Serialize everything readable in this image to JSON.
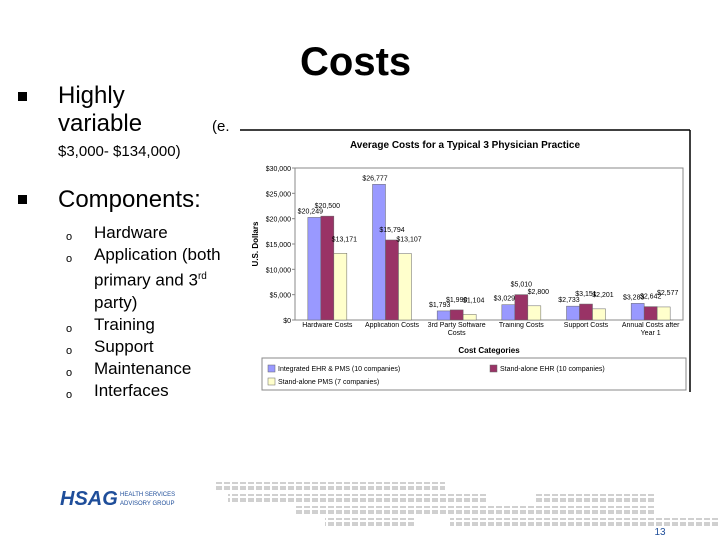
{
  "slide": {
    "title": "Costs",
    "bullets": [
      {
        "text": "Highly variable",
        "cont": "(e.",
        "range": "$3,000- $134,000)"
      },
      {
        "text": "Components:",
        "items": [
          "Hardware",
          [
            "Application (both primary and 3",
            "rd",
            " party)"
          ],
          "Training",
          "Support",
          "Maintenance",
          "Interfaces"
        ]
      }
    ],
    "logo": {
      "name": "HSAG",
      "line1": "HEALTH SERVICES",
      "line2": "ADVISORY GROUP"
    },
    "page_number": "13"
  },
  "chart_data": {
    "type": "bar",
    "title": "Average Costs for a Typical 3 Physician Practice",
    "x_label": "Cost Categories",
    "y_label": "U.S. Dollars",
    "categories": [
      "Hardware Costs",
      "Application Costs",
      "3rd Party Software Costs",
      "Training Costs",
      "Support Costs",
      "Annual Costs after Year 1"
    ],
    "series": [
      {
        "name": "Integrated EHR & PMS (10 companies)",
        "color": "#9999ff",
        "values": [
          20249,
          26777,
          1793,
          3029,
          2733,
          3283
        ],
        "value_labels": [
          "$20,249",
          "$26,777",
          "$1,793",
          "$3,029",
          "$2,733",
          "$3,283"
        ]
      },
      {
        "name": "Stand-alone EHR (10 companies)",
        "color": "#993366",
        "values": [
          20500,
          15794,
          1990,
          5010,
          3151,
          2642
        ],
        "value_labels": [
          "$20,500",
          "$15,794",
          "$1,990",
          "$5,010",
          "$3,151",
          "$2,642"
        ]
      },
      {
        "name": "Stand-alone PMS (7 companies)",
        "color": "#ffffcc",
        "values": [
          13171,
          13107,
          1104,
          2800,
          2201,
          2577
        ],
        "value_labels": [
          "$13,171",
          "$13,107",
          "$1,104",
          "$2,800",
          "$2,201",
          "$2,577"
        ]
      }
    ],
    "ylim": [
      0,
      30000
    ],
    "yticks": [
      {
        "value": 0,
        "label": "$0"
      },
      {
        "value": 5000,
        "label": "$5,000"
      },
      {
        "value": 10000,
        "label": "$10,000"
      },
      {
        "value": 15000,
        "label": "$15,000"
      },
      {
        "value": 20000,
        "label": "$20,000"
      },
      {
        "value": 25000,
        "label": "$25,000"
      },
      {
        "value": 30000,
        "label": "$30,000"
      }
    ],
    "grid": false,
    "legend": "bottom"
  }
}
